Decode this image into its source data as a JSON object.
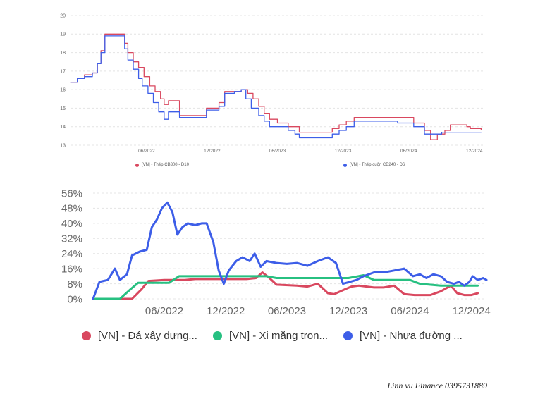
{
  "chart_data": [
    {
      "type": "line",
      "title": "",
      "xlabel": "",
      "ylabel": "",
      "ylim": [
        13,
        20
      ],
      "y_ticks": [
        "13",
        "14",
        "15",
        "16",
        "17",
        "18",
        "19",
        "20"
      ],
      "x_range": [
        "2021-11-01",
        "2024-12-31"
      ],
      "x_ticks": [
        {
          "label": "06/2022",
          "date": "2022-06-01"
        },
        {
          "label": "12/2022",
          "date": "2022-12-01"
        },
        {
          "label": "06/2023",
          "date": "2023-06-01"
        },
        {
          "label": "12/2023",
          "date": "2023-12-01"
        },
        {
          "label": "06/2024",
          "date": "2024-06-01"
        },
        {
          "label": "12/2024",
          "date": "2024-12-01"
        }
      ],
      "grid": true,
      "legend_position": "bottom",
      "series": [
        {
          "name": "[VN] - Thép CB300 - D10",
          "color": "#d9485f",
          "step": true,
          "points": [
            [
              "2021-11-01",
              16.4
            ],
            [
              "2021-11-20",
              16.6
            ],
            [
              "2021-12-10",
              16.8
            ],
            [
              "2022-01-01",
              16.9
            ],
            [
              "2022-01-15",
              17.4
            ],
            [
              "2022-01-25",
              18.1
            ],
            [
              "2022-02-05",
              19.0
            ],
            [
              "2022-03-25",
              19.0
            ],
            [
              "2022-04-01",
              18.5
            ],
            [
              "2022-04-10",
              18.0
            ],
            [
              "2022-04-25",
              17.5
            ],
            [
              "2022-05-10",
              17.2
            ],
            [
              "2022-05-25",
              16.7
            ],
            [
              "2022-06-10",
              16.2
            ],
            [
              "2022-06-25",
              15.9
            ],
            [
              "2022-07-10",
              15.5
            ],
            [
              "2022-07-20",
              15.2
            ],
            [
              "2022-08-01",
              15.4
            ],
            [
              "2022-09-01",
              14.6
            ],
            [
              "2022-11-01",
              14.6
            ],
            [
              "2022-11-15",
              15.0
            ],
            [
              "2022-12-20",
              15.3
            ],
            [
              "2023-01-05",
              15.9
            ],
            [
              "2023-02-20",
              16.0
            ],
            [
              "2023-03-10",
              15.8
            ],
            [
              "2023-03-25",
              15.5
            ],
            [
              "2023-04-10",
              15.1
            ],
            [
              "2023-04-25",
              14.7
            ],
            [
              "2023-05-10",
              14.4
            ],
            [
              "2023-06-01",
              14.2
            ],
            [
              "2023-07-01",
              14.0
            ],
            [
              "2023-08-01",
              13.7
            ],
            [
              "2023-10-15",
              13.7
            ],
            [
              "2023-11-01",
              13.9
            ],
            [
              "2023-11-20",
              14.1
            ],
            [
              "2023-12-10",
              14.3
            ],
            [
              "2024-01-01",
              14.5
            ],
            [
              "2024-05-01",
              14.5
            ],
            [
              "2024-06-15",
              14.2
            ],
            [
              "2024-07-15",
              13.8
            ],
            [
              "2024-08-01",
              13.3
            ],
            [
              "2024-08-20",
              13.6
            ],
            [
              "2024-09-10",
              13.8
            ],
            [
              "2024-09-25",
              14.1
            ],
            [
              "2024-11-10",
              14.0
            ],
            [
              "2024-11-20",
              13.9
            ],
            [
              "2024-12-20",
              13.85
            ]
          ]
        },
        {
          "name": "[VN] - Thép cuộn CB240 - D6",
          "color": "#3d5ee8",
          "step": true,
          "points": [
            [
              "2021-11-01",
              16.4
            ],
            [
              "2021-11-20",
              16.6
            ],
            [
              "2021-12-10",
              16.7
            ],
            [
              "2022-01-01",
              16.9
            ],
            [
              "2022-01-15",
              17.4
            ],
            [
              "2022-01-25",
              18.0
            ],
            [
              "2022-02-05",
              18.9
            ],
            [
              "2022-03-25",
              18.9
            ],
            [
              "2022-04-01",
              18.2
            ],
            [
              "2022-04-10",
              17.6
            ],
            [
              "2022-04-25",
              17.1
            ],
            [
              "2022-05-10",
              16.6
            ],
            [
              "2022-05-20",
              16.2
            ],
            [
              "2022-06-05",
              15.8
            ],
            [
              "2022-06-20",
              15.3
            ],
            [
              "2022-07-05",
              14.8
            ],
            [
              "2022-07-20",
              14.4
            ],
            [
              "2022-08-01",
              14.8
            ],
            [
              "2022-09-01",
              14.5
            ],
            [
              "2022-11-01",
              14.5
            ],
            [
              "2022-11-15",
              14.9
            ],
            [
              "2022-12-20",
              15.1
            ],
            [
              "2023-01-05",
              15.8
            ],
            [
              "2023-02-01",
              15.9
            ],
            [
              "2023-02-20",
              16.0
            ],
            [
              "2023-03-05",
              15.5
            ],
            [
              "2023-03-20",
              15.0
            ],
            [
              "2023-04-10",
              14.6
            ],
            [
              "2023-04-25",
              14.3
            ],
            [
              "2023-05-10",
              14.0
            ],
            [
              "2023-07-01",
              13.8
            ],
            [
              "2023-07-20",
              13.6
            ],
            [
              "2023-08-01",
              13.4
            ],
            [
              "2023-10-15",
              13.4
            ],
            [
              "2023-11-01",
              13.6
            ],
            [
              "2023-11-20",
              13.8
            ],
            [
              "2023-12-10",
              14.0
            ],
            [
              "2024-01-01",
              14.3
            ],
            [
              "2024-05-01",
              14.2
            ],
            [
              "2024-06-15",
              14.0
            ],
            [
              "2024-07-15",
              13.6
            ],
            [
              "2024-09-01",
              13.7
            ],
            [
              "2024-11-01",
              13.7
            ],
            [
              "2024-12-20",
              13.7
            ]
          ]
        }
      ]
    },
    {
      "type": "line",
      "title": "",
      "xlabel": "",
      "ylabel": "",
      "ylim": [
        0,
        56
      ],
      "y_ticks": [
        "0%",
        "8%",
        "16%",
        "24%",
        "32%",
        "40%",
        "48%",
        "56%"
      ],
      "x_range": [
        "2021-11-01",
        "2025-01-15"
      ],
      "x_ticks": [
        {
          "label": "06/2022",
          "date": "2022-06-01"
        },
        {
          "label": "12/2022",
          "date": "2022-12-01"
        },
        {
          "label": "06/2023",
          "date": "2023-06-01"
        },
        {
          "label": "12/2023",
          "date": "2023-12-01"
        },
        {
          "label": "06/2024",
          "date": "2024-06-01"
        },
        {
          "label": "12/2024",
          "date": "2024-12-01"
        }
      ],
      "grid": true,
      "legend_position": "bottom",
      "series": [
        {
          "name": "[VN] - Đá xây dựng...",
          "color": "#d9485f",
          "points": [
            [
              "2021-11-01",
              0
            ],
            [
              "2022-02-25",
              0
            ],
            [
              "2022-03-25",
              5
            ],
            [
              "2022-04-15",
              9.5
            ],
            [
              "2022-06-01",
              10
            ],
            [
              "2022-08-01",
              10
            ],
            [
              "2022-09-01",
              10.5
            ],
            [
              "2022-12-01",
              10.5
            ],
            [
              "2023-02-01",
              10.5
            ],
            [
              "2023-03-01",
              11
            ],
            [
              "2023-03-20",
              14
            ],
            [
              "2023-04-10",
              11
            ],
            [
              "2023-05-01",
              7.5
            ],
            [
              "2023-07-01",
              7
            ],
            [
              "2023-08-01",
              6.5
            ],
            [
              "2023-09-01",
              8
            ],
            [
              "2023-10-01",
              3
            ],
            [
              "2023-10-20",
              2.5
            ],
            [
              "2023-11-20",
              5
            ],
            [
              "2023-12-10",
              6.5
            ],
            [
              "2024-01-01",
              7
            ],
            [
              "2024-02-15",
              6
            ],
            [
              "2024-03-15",
              6
            ],
            [
              "2024-04-15",
              7
            ],
            [
              "2024-05-15",
              2.5
            ],
            [
              "2024-06-15",
              2
            ],
            [
              "2024-08-01",
              2
            ],
            [
              "2024-09-01",
              4
            ],
            [
              "2024-10-01",
              7
            ],
            [
              "2024-10-20",
              3
            ],
            [
              "2024-11-10",
              2
            ],
            [
              "2024-12-01",
              2
            ],
            [
              "2024-12-20",
              3
            ]
          ]
        },
        {
          "name": "[VN] - Xi măng tron...",
          "color": "#27c081",
          "points": [
            [
              "2021-11-01",
              0
            ],
            [
              "2022-01-20",
              0
            ],
            [
              "2022-02-20",
              5
            ],
            [
              "2022-03-15",
              8.5
            ],
            [
              "2022-06-15",
              8.5
            ],
            [
              "2022-07-15",
              12
            ],
            [
              "2023-04-01",
              12
            ],
            [
              "2023-05-01",
              11
            ],
            [
              "2023-12-01",
              11
            ],
            [
              "2024-01-15",
              12.5
            ],
            [
              "2024-02-15",
              10
            ],
            [
              "2024-06-01",
              10
            ],
            [
              "2024-07-01",
              8
            ],
            [
              "2024-09-01",
              7
            ],
            [
              "2024-12-01",
              7
            ],
            [
              "2024-12-20",
              7
            ]
          ]
        },
        {
          "name": "[VN] - Nhựa đường ...",
          "color": "#3d5ee8",
          "points": [
            [
              "2021-11-01",
              0
            ],
            [
              "2021-11-20",
              9
            ],
            [
              "2021-12-15",
              10
            ],
            [
              "2022-01-05",
              16
            ],
            [
              "2022-01-20",
              10
            ],
            [
              "2022-02-10",
              13
            ],
            [
              "2022-02-25",
              23
            ],
            [
              "2022-03-20",
              25
            ],
            [
              "2022-04-10",
              26
            ],
            [
              "2022-04-25",
              38
            ],
            [
              "2022-05-10",
              42
            ],
            [
              "2022-05-25",
              48
            ],
            [
              "2022-06-10",
              51
            ],
            [
              "2022-06-25",
              46
            ],
            [
              "2022-07-10",
              34
            ],
            [
              "2022-07-25",
              38
            ],
            [
              "2022-08-10",
              40
            ],
            [
              "2022-09-01",
              39
            ],
            [
              "2022-09-20",
              40
            ],
            [
              "2022-10-05",
              40
            ],
            [
              "2022-10-25",
              30
            ],
            [
              "2022-11-10",
              15
            ],
            [
              "2022-11-25",
              8
            ],
            [
              "2022-12-10",
              15
            ],
            [
              "2023-01-01",
              20
            ],
            [
              "2023-01-20",
              22
            ],
            [
              "2023-02-10",
              20
            ],
            [
              "2023-02-25",
              24
            ],
            [
              "2023-03-15",
              17
            ],
            [
              "2023-04-01",
              20
            ],
            [
              "2023-05-01",
              19
            ],
            [
              "2023-06-01",
              18.5
            ],
            [
              "2023-07-01",
              19
            ],
            [
              "2023-08-01",
              17.5
            ],
            [
              "2023-09-01",
              20
            ],
            [
              "2023-10-01",
              22
            ],
            [
              "2023-10-25",
              19
            ],
            [
              "2023-11-15",
              8
            ],
            [
              "2023-12-05",
              9
            ],
            [
              "2023-12-25",
              10
            ],
            [
              "2024-01-15",
              12
            ],
            [
              "2024-02-15",
              14
            ],
            [
              "2024-03-15",
              14
            ],
            [
              "2024-04-15",
              15
            ],
            [
              "2024-05-15",
              16
            ],
            [
              "2024-06-10",
              12
            ],
            [
              "2024-07-01",
              13
            ],
            [
              "2024-07-20",
              11
            ],
            [
              "2024-08-10",
              13
            ],
            [
              "2024-09-01",
              12
            ],
            [
              "2024-09-20",
              9
            ],
            [
              "2024-10-10",
              8
            ],
            [
              "2024-10-25",
              9
            ],
            [
              "2024-11-10",
              7
            ],
            [
              "2024-11-25",
              9
            ],
            [
              "2024-12-05",
              12
            ],
            [
              "2024-12-20",
              10
            ],
            [
              "2025-01-05",
              11
            ],
            [
              "2025-01-15",
              10
            ]
          ]
        }
      ]
    }
  ],
  "footer": {
    "credit": "Linh vu Finance 0395731889"
  }
}
